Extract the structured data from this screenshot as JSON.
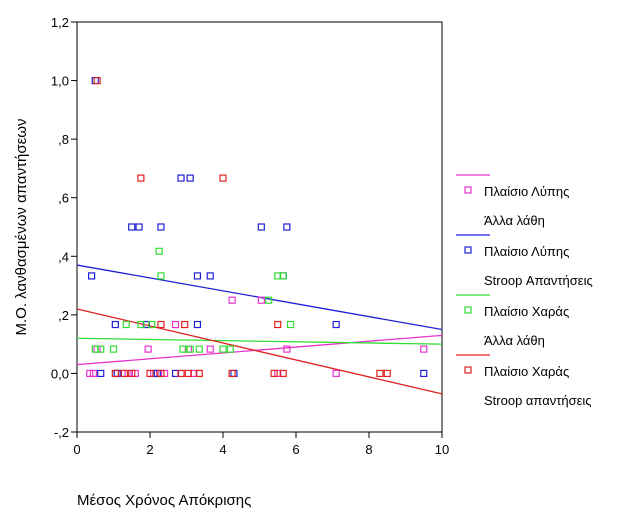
{
  "chart_data": {
    "type": "scatter",
    "xlabel": "Μέσος Χρόνος Απόκρισης",
    "ylabel": "Μ.Ο. λανθασμένων απαντήσεων",
    "xlim": [
      0,
      10
    ],
    "ylim": [
      -0.2,
      1.2
    ],
    "x_ticks": [
      0,
      2,
      4,
      6,
      8,
      10
    ],
    "x_tick_labels": [
      "0",
      "2",
      "4",
      "6",
      "8",
      "10"
    ],
    "y_ticks": [
      -0.2,
      0,
      0.2,
      0.4,
      0.6,
      0.8,
      1.0,
      1.2
    ],
    "y_tick_labels": [
      "-,2",
      "0,0",
      ",2",
      ",4",
      ",6",
      ",8",
      "1,0",
      "1,2"
    ],
    "grid": false,
    "legend_position": "right",
    "series": [
      {
        "name": "Πλαίσιο Λύπης Άλλα λάθη",
        "legend_lines": [
          "Πλαίσιο Λύπης",
          "Άλλα λάθη"
        ],
        "color": "#e633cc",
        "fit_line": [
          [
            0,
            0.03
          ],
          [
            10,
            0.13
          ]
        ],
        "points": [
          [
            0.35,
            0.0
          ],
          [
            0.45,
            0.0
          ],
          [
            0.55,
            0.083
          ],
          [
            1.1,
            0.0
          ],
          [
            1.4,
            0.0
          ],
          [
            1.6,
            0.0
          ],
          [
            1.95,
            0.083
          ],
          [
            2.1,
            0.0
          ],
          [
            2.4,
            0.0
          ],
          [
            2.7,
            0.167
          ],
          [
            3.05,
            0.083
          ],
          [
            3.2,
            0.0
          ],
          [
            3.65,
            0.083
          ],
          [
            4.25,
            0.25
          ],
          [
            5.05,
            0.25
          ],
          [
            5.5,
            0.0
          ],
          [
            5.75,
            0.083
          ],
          [
            7.1,
            0.0
          ],
          [
            9.5,
            0.083
          ]
        ]
      },
      {
        "name": "Πλαίσιο Λύπης Stroop Απαντήσεις",
        "legend_lines": [
          "Πλαίσιο Λύπης",
          "Stroop Απαντήσεις"
        ],
        "color": "#1f1fd6",
        "fit_line": [
          [
            0,
            0.37
          ],
          [
            10,
            0.15
          ]
        ],
        "points": [
          [
            0.4,
            0.333
          ],
          [
            0.5,
            1.0
          ],
          [
            0.65,
            0.0
          ],
          [
            1.05,
            0.167
          ],
          [
            1.1,
            0.0
          ],
          [
            1.5,
            0.5
          ],
          [
            1.7,
            0.5
          ],
          [
            1.9,
            0.167
          ],
          [
            2.2,
            0.0
          ],
          [
            2.3,
            0.5
          ],
          [
            2.7,
            0.0
          ],
          [
            2.85,
            0.667
          ],
          [
            3.1,
            0.667
          ],
          [
            3.3,
            0.333
          ],
          [
            3.3,
            0.167
          ],
          [
            3.65,
            0.333
          ],
          [
            4.3,
            0.0
          ],
          [
            5.05,
            0.5
          ],
          [
            5.65,
            0.333
          ],
          [
            5.75,
            0.5
          ],
          [
            7.1,
            0.167
          ],
          [
            9.5,
            0.0
          ]
        ]
      },
      {
        "name": "Πλαίσιο Χαράς Άλλα λάθη",
        "legend_lines": [
          "Πλαίσιο Χαράς",
          "Άλλα λάθη"
        ],
        "color": "#33dd33",
        "fit_line": [
          [
            0,
            0.12
          ],
          [
            10,
            0.1
          ]
        ],
        "points": [
          [
            0.5,
            0.083
          ],
          [
            0.65,
            0.083
          ],
          [
            1.0,
            0.083
          ],
          [
            1.35,
            0.167
          ],
          [
            1.75,
            0.167
          ],
          [
            2.05,
            0.167
          ],
          [
            2.25,
            0.417
          ],
          [
            2.3,
            0.333
          ],
          [
            2.9,
            0.083
          ],
          [
            3.1,
            0.083
          ],
          [
            3.35,
            0.083
          ],
          [
            4.0,
            0.083
          ],
          [
            4.2,
            0.083
          ],
          [
            5.25,
            0.25
          ],
          [
            5.5,
            0.333
          ],
          [
            5.65,
            0.333
          ],
          [
            5.85,
            0.167
          ]
        ]
      },
      {
        "name": "Πλαίσιο Χαράς Stroop απαντήσεις",
        "legend_lines": [
          "Πλαίσιο Χαράς",
          "Stroop απαντήσεις"
        ],
        "color": "#e02020",
        "fit_line": [
          [
            0,
            0.22
          ],
          [
            10,
            -0.07
          ]
        ],
        "points": [
          [
            0.55,
            1.0
          ],
          [
            1.05,
            0.0
          ],
          [
            1.3,
            0.0
          ],
          [
            1.5,
            0.0
          ],
          [
            1.75,
            0.667
          ],
          [
            2.0,
            0.0
          ],
          [
            2.3,
            0.167
          ],
          [
            2.3,
            0.0
          ],
          [
            2.85,
            0.0
          ],
          [
            2.95,
            0.167
          ],
          [
            3.05,
            0.0
          ],
          [
            3.35,
            0.0
          ],
          [
            4.0,
            0.667
          ],
          [
            4.25,
            0.0
          ],
          [
            5.4,
            0.0
          ],
          [
            5.5,
            0.167
          ],
          [
            5.65,
            0.0
          ],
          [
            8.3,
            0.0
          ],
          [
            8.5,
            0.0
          ]
        ]
      }
    ]
  }
}
